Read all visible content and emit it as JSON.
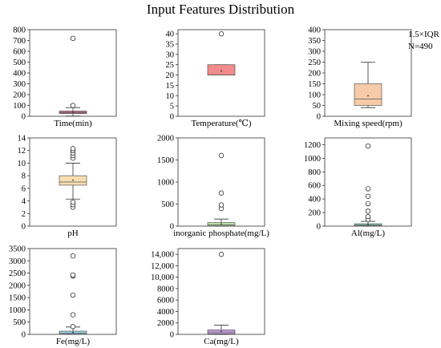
{
  "title": "Input Features Distribution",
  "annotation": {
    "whisker_rule": "1.5×IQR",
    "sample_size": "N=490"
  },
  "chart_data": [
    {
      "type": "box",
      "label": "Time(min)",
      "color": "#c96a8a",
      "ylim": [
        0,
        800
      ],
      "ticks": [
        0,
        100,
        200,
        300,
        400,
        500,
        600,
        700,
        800
      ],
      "tick_labels": [
        "0",
        "100",
        "200",
        "300",
        "400",
        "500",
        "600",
        "700",
        "800"
      ],
      "q1": 25,
      "median": 35,
      "q3": 48,
      "mean": 38,
      "whisker_low": 2,
      "whisker_high": 80,
      "outliers": [
        100,
        720
      ]
    },
    {
      "type": "box",
      "label": "Temperature(℃)",
      "color": "#f28b8b",
      "ylim": [
        0,
        42
      ],
      "ticks": [
        0,
        5,
        10,
        15,
        20,
        25,
        30,
        35,
        40
      ],
      "tick_labels": [
        "0",
        "5",
        "10",
        "15",
        "20",
        "25",
        "30",
        "35",
        "40"
      ],
      "q1": 20,
      "median": 20,
      "q3": 25,
      "mean": 22,
      "whisker_low": 20,
      "whisker_high": 25,
      "outliers": [
        40
      ]
    },
    {
      "type": "box",
      "label": "Mixing speed(rpm)",
      "color": "#f7cba8",
      "ylim": [
        0,
        400
      ],
      "ticks": [
        0,
        50,
        100,
        150,
        200,
        250,
        300,
        350,
        400
      ],
      "tick_labels": [
        "0",
        "50",
        "100",
        "150",
        "200",
        "250",
        "300",
        "350",
        "400"
      ],
      "q1": 50,
      "median": 80,
      "q3": 150,
      "mean": 95,
      "whisker_low": 40,
      "whisker_high": 250,
      "outliers": []
    },
    {
      "type": "box",
      "label": "pH",
      "color": "#f8deb0",
      "ylim": [
        0,
        14
      ],
      "ticks": [
        0,
        2,
        4,
        6,
        8,
        10,
        12,
        14
      ],
      "tick_labels": [
        "0",
        "2",
        "4",
        "6",
        "8",
        "10",
        "12",
        "14"
      ],
      "q1": 6.5,
      "median": 7,
      "q3": 8,
      "mean": 7.3,
      "whisker_low": 4.3,
      "whisker_high": 10,
      "outliers": [
        3,
        3.4,
        3.8,
        10.8,
        11.2,
        11.6,
        12,
        12.3
      ]
    },
    {
      "type": "box",
      "label": "inorganic phosphate(mg/L)",
      "color": "#b9e0a5",
      "ylim": [
        0,
        2000
      ],
      "ticks": [
        0,
        500,
        1000,
        1500,
        2000
      ],
      "tick_labels": [
        "0",
        "500",
        "1000",
        "1500",
        "2000"
      ],
      "q1": 5,
      "median": 30,
      "q3": 80,
      "mean": 50,
      "whisker_low": 0,
      "whisker_high": 160,
      "outliers": [
        400,
        480,
        750,
        1600
      ]
    },
    {
      "type": "box",
      "label": "Al(mg/L)",
      "color": "#8fd6c9",
      "ylim": [
        0,
        1300
      ],
      "ticks": [
        0,
        200,
        400,
        600,
        800,
        1000,
        1200
      ],
      "tick_labels": [
        "0",
        "200",
        "400",
        "600",
        "800",
        "1000",
        "1200"
      ],
      "q1": 5,
      "median": 15,
      "q3": 35,
      "mean": 25,
      "whisker_low": 0,
      "whisker_high": 70,
      "outliers": [
        100,
        140,
        220,
        330,
        440,
        550,
        1180
      ]
    },
    {
      "type": "box",
      "label": "Fe(mg/L)",
      "color": "#9ad1e8",
      "ylim": [
        0,
        3500
      ],
      "ticks": [
        0,
        500,
        1000,
        1500,
        2000,
        2500,
        3000,
        3500
      ],
      "tick_labels": [
        "0",
        "500",
        "1000",
        "1500",
        "2000",
        "2500",
        "3000",
        "3500"
      ],
      "q1": 10,
      "median": 40,
      "q3": 130,
      "mean": 80,
      "whisker_low": 0,
      "whisker_high": 300,
      "outliers": [
        320,
        800,
        1600,
        2380,
        2420,
        3200
      ]
    },
    {
      "type": "box",
      "label": "Ca(mg/L)",
      "color": "#cfa6e6",
      "ylim": [
        0,
        15000
      ],
      "ticks": [
        0,
        2000,
        4000,
        6000,
        8000,
        10000,
        12000,
        14000
      ],
      "tick_labels": [
        "0",
        "2000",
        "4000",
        "6000",
        "8000",
        "10,000",
        "12,000",
        "14,000"
      ],
      "q1": 100,
      "median": 400,
      "q3": 800,
      "mean": 500,
      "whisker_low": 0,
      "whisker_high": 1600,
      "outliers": [
        14000
      ]
    }
  ]
}
